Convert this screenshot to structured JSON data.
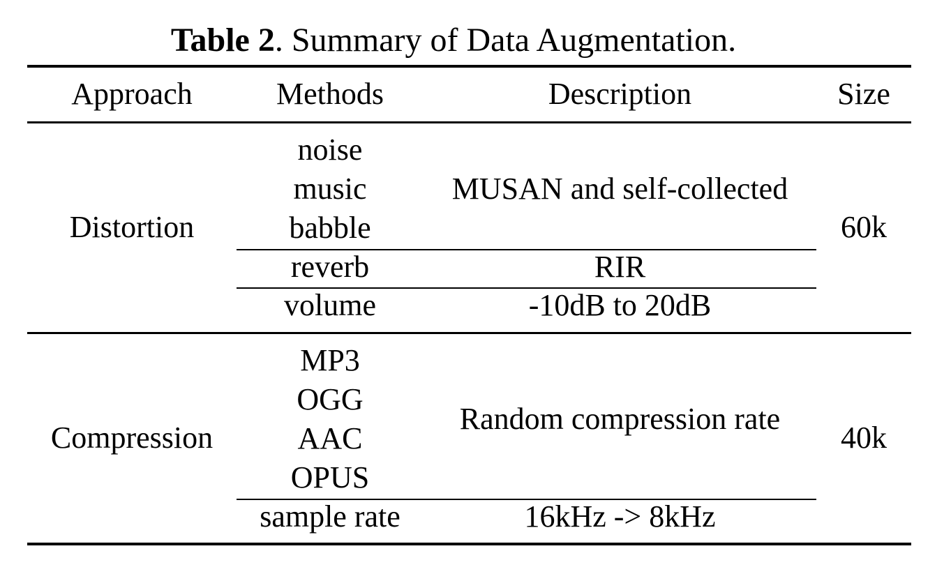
{
  "caption": {
    "label": "Table 2",
    "text": ". Summary of Data Augmentation."
  },
  "table": {
    "headers": [
      "Approach",
      "Methods",
      "Description",
      "Size"
    ],
    "groups": [
      {
        "approach": "Distortion",
        "size": "60k",
        "rows": [
          {
            "methods": [
              "noise",
              "music",
              "babble"
            ],
            "description": "MUSAN and self-collected"
          },
          {
            "methods": [
              "reverb"
            ],
            "description": "RIR"
          },
          {
            "methods": [
              "volume"
            ],
            "description": "-10dB to 20dB"
          }
        ]
      },
      {
        "approach": "Compression",
        "size": "40k",
        "rows": [
          {
            "methods": [
              "MP3",
              "OGG",
              "AAC",
              "OPUS"
            ],
            "description": "Random compression rate"
          },
          {
            "methods": [
              "sample rate"
            ],
            "description": "16kHz -> 8kHz"
          }
        ]
      }
    ]
  }
}
